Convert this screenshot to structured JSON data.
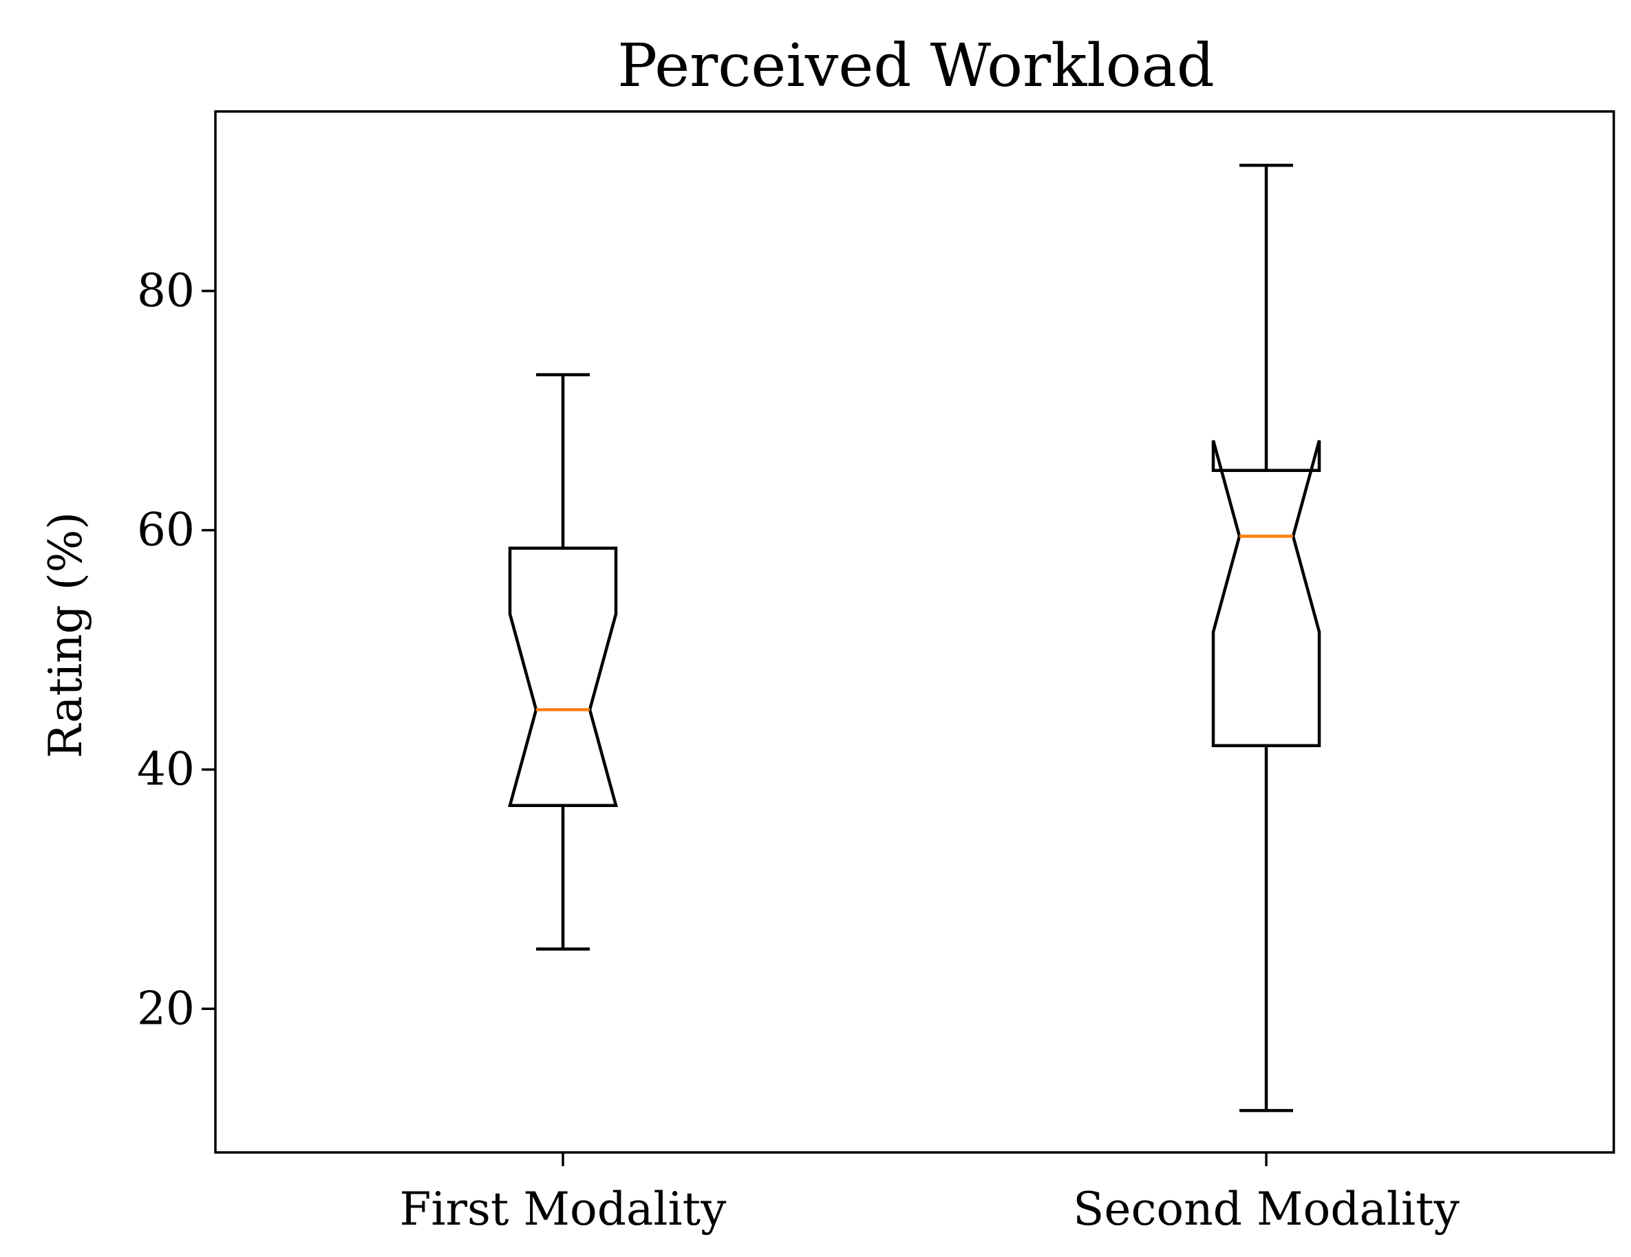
{
  "chart_data": {
    "type": "boxplot",
    "notched": true,
    "title": "Perceived Workload",
    "xlabel": "",
    "ylabel": "Rating (%)",
    "categories": [
      "First Modality",
      "Second Modality"
    ],
    "boxes": [
      {
        "whisker_low": 25,
        "q1": 37,
        "median": 45,
        "q3": 58.5,
        "whisker_high": 73,
        "notch_low": 37,
        "notch_high": 53
      },
      {
        "whisker_low": 11.5,
        "q1": 42,
        "median": 59.5,
        "q3": 65,
        "whisker_high": 90.5,
        "notch_low": 51.5,
        "notch_high": 67.5
      }
    ],
    "ylim": [
      8,
      95
    ],
    "yticks": [
      20,
      40,
      60,
      80
    ],
    "ytick_labels": [
      "20",
      "40",
      "60",
      "80"
    ],
    "grid": false,
    "legend": "none",
    "colors": {
      "box": "#000000",
      "median": "#ff7f0e"
    }
  }
}
